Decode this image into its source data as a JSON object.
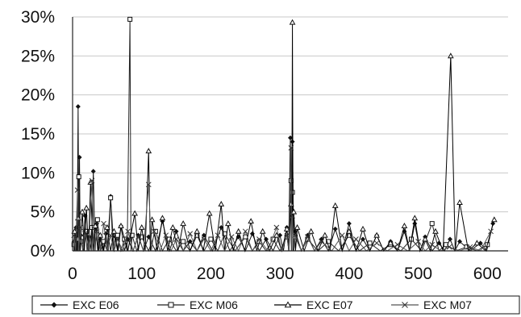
{
  "chart_data": {
    "type": "line",
    "title": "",
    "xlabel": "",
    "ylabel": "",
    "xlim": [
      0,
      630
    ],
    "ylim": [
      0,
      30
    ],
    "x_ticks": [
      0,
      100,
      200,
      300,
      400,
      500,
      600
    ],
    "x_tick_labels": [
      "0",
      "100",
      "200",
      "300",
      "400",
      "500",
      "600"
    ],
    "y_ticks": [
      0,
      5,
      10,
      15,
      20,
      25,
      30
    ],
    "y_tick_labels": [
      "0%",
      "5%",
      "10%",
      "15%",
      "20%",
      "25%",
      "30%"
    ],
    "grid": "horizontal",
    "legend_position": "bottom",
    "series": [
      {
        "name": "EXC E06",
        "marker": "diamond",
        "points": [
          [
            2,
            1.2
          ],
          [
            5,
            3.0
          ],
          [
            8,
            18.5
          ],
          [
            10,
            12.0
          ],
          [
            12,
            2.0
          ],
          [
            18,
            4.5
          ],
          [
            24,
            1.8
          ],
          [
            30,
            10.2
          ],
          [
            35,
            3.5
          ],
          [
            40,
            1.5
          ],
          [
            48,
            2.2
          ],
          [
            55,
            7.0
          ],
          [
            62,
            1.8
          ],
          [
            70,
            3.2
          ],
          [
            80,
            1.5
          ],
          [
            95,
            2.0
          ],
          [
            110,
            1.8
          ],
          [
            130,
            3.8
          ],
          [
            150,
            2.5
          ],
          [
            170,
            1.2
          ],
          [
            190,
            2.0
          ],
          [
            215,
            3.0
          ],
          [
            240,
            1.8
          ],
          [
            260,
            2.2
          ],
          [
            280,
            1.5
          ],
          [
            300,
            2.0
          ],
          [
            310,
            3.0
          ],
          [
            315,
            14.5
          ],
          [
            318,
            14.0
          ],
          [
            322,
            2.5
          ],
          [
            340,
            2.0
          ],
          [
            360,
            1.5
          ],
          [
            380,
            2.8
          ],
          [
            400,
            3.5
          ],
          [
            420,
            1.5
          ],
          [
            440,
            2.0
          ],
          [
            460,
            1.2
          ],
          [
            480,
            2.5
          ],
          [
            495,
            3.5
          ],
          [
            510,
            1.8
          ],
          [
            530,
            1.0
          ],
          [
            546,
            1.5
          ],
          [
            560,
            1.2
          ],
          [
            590,
            1.0
          ],
          [
            608,
            3.5
          ]
        ]
      },
      {
        "name": "EXC M06",
        "marker": "square",
        "points": [
          [
            2,
            0.8
          ],
          [
            6,
            1.5
          ],
          [
            9,
            9.5
          ],
          [
            12,
            1.2
          ],
          [
            20,
            2.5
          ],
          [
            28,
            3.0
          ],
          [
            36,
            4.0
          ],
          [
            45,
            1.2
          ],
          [
            55,
            6.8
          ],
          [
            65,
            2.0
          ],
          [
            75,
            1.5
          ],
          [
            83,
            29.7
          ],
          [
            86,
            2.0
          ],
          [
            100,
            1.8
          ],
          [
            120,
            2.5
          ],
          [
            140,
            1.5
          ],
          [
            160,
            1.2
          ],
          [
            180,
            2.0
          ],
          [
            200,
            1.5
          ],
          [
            220,
            2.2
          ],
          [
            250,
            1.8
          ],
          [
            270,
            1.2
          ],
          [
            290,
            1.5
          ],
          [
            310,
            1.8
          ],
          [
            316,
            9.0
          ],
          [
            318,
            7.5
          ],
          [
            322,
            1.8
          ],
          [
            340,
            1.5
          ],
          [
            370,
            1.2
          ],
          [
            400,
            2.0
          ],
          [
            430,
            1.0
          ],
          [
            460,
            0.8
          ],
          [
            490,
            1.5
          ],
          [
            520,
            3.5
          ],
          [
            540,
            0.8
          ],
          [
            570,
            0.5
          ],
          [
            600,
            0.8
          ]
        ]
      },
      {
        "name": "EXC E07",
        "marker": "triangle",
        "points": [
          [
            3,
            2.5
          ],
          [
            8,
            4.2
          ],
          [
            14,
            5.0
          ],
          [
            20,
            5.5
          ],
          [
            26,
            8.8
          ],
          [
            33,
            3.2
          ],
          [
            40,
            2.0
          ],
          [
            50,
            3.0
          ],
          [
            60,
            2.5
          ],
          [
            70,
            3.2
          ],
          [
            90,
            4.8
          ],
          [
            100,
            3.0
          ],
          [
            110,
            12.8
          ],
          [
            115,
            4.0
          ],
          [
            130,
            4.2
          ],
          [
            145,
            3.0
          ],
          [
            160,
            3.5
          ],
          [
            180,
            2.5
          ],
          [
            198,
            4.8
          ],
          [
            215,
            6.0
          ],
          [
            225,
            3.5
          ],
          [
            240,
            2.5
          ],
          [
            258,
            3.8
          ],
          [
            275,
            2.5
          ],
          [
            295,
            2.0
          ],
          [
            310,
            2.8
          ],
          [
            316,
            6.0
          ],
          [
            318,
            29.3
          ],
          [
            320,
            5.0
          ],
          [
            325,
            3.0
          ],
          [
            345,
            2.5
          ],
          [
            365,
            2.0
          ],
          [
            380,
            5.8
          ],
          [
            400,
            2.5
          ],
          [
            420,
            2.8
          ],
          [
            440,
            2.0
          ],
          [
            460,
            1.0
          ],
          [
            480,
            3.2
          ],
          [
            495,
            4.2
          ],
          [
            510,
            1.5
          ],
          [
            525,
            2.5
          ],
          [
            547,
            25.0
          ],
          [
            560,
            6.2
          ],
          [
            585,
            1.0
          ],
          [
            610,
            4.0
          ]
        ]
      },
      {
        "name": "EXC M07",
        "marker": "x",
        "points": [
          [
            2,
            2.0
          ],
          [
            7,
            7.8
          ],
          [
            11,
            3.0
          ],
          [
            18,
            2.2
          ],
          [
            28,
            9.0
          ],
          [
            35,
            2.5
          ],
          [
            45,
            3.5
          ],
          [
            55,
            2.0
          ],
          [
            65,
            1.5
          ],
          [
            80,
            2.5
          ],
          [
            95,
            1.8
          ],
          [
            110,
            8.5
          ],
          [
            118,
            2.5
          ],
          [
            135,
            2.0
          ],
          [
            150,
            1.5
          ],
          [
            170,
            2.2
          ],
          [
            190,
            1.5
          ],
          [
            210,
            2.0
          ],
          [
            230,
            1.8
          ],
          [
            250,
            2.5
          ],
          [
            270,
            1.5
          ],
          [
            295,
            3.0
          ],
          [
            310,
            2.0
          ],
          [
            316,
            13.2
          ],
          [
            318,
            4.5
          ],
          [
            322,
            2.0
          ],
          [
            340,
            1.8
          ],
          [
            360,
            1.2
          ],
          [
            390,
            2.0
          ],
          [
            410,
            1.5
          ],
          [
            440,
            1.0
          ],
          [
            470,
            0.8
          ],
          [
            500,
            1.2
          ],
          [
            520,
            0.8
          ],
          [
            545,
            0.5
          ],
          [
            575,
            0.5
          ],
          [
            605,
            2.5
          ]
        ]
      }
    ]
  }
}
